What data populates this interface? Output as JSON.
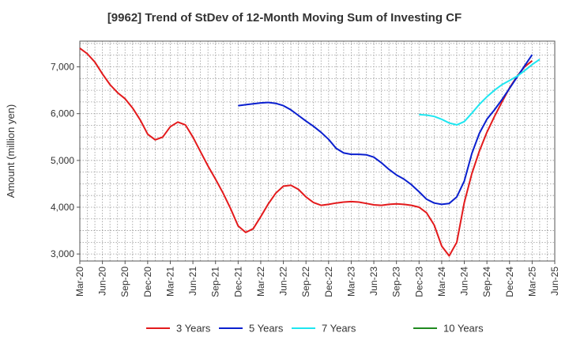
{
  "chart_data": {
    "type": "line",
    "title": "[9962]  Trend of StDev of 12-Month Moving Sum of Investing CF",
    "ylabel": "Amount (million yen)",
    "xlabel": "",
    "ylim": [
      2850,
      7550
    ],
    "yticks": [
      3000,
      4000,
      5000,
      6000,
      7000
    ],
    "ytick_labels": [
      "3,000",
      "4,000",
      "5,000",
      "6,000",
      "7,000"
    ],
    "xlim": [
      0,
      63
    ],
    "xticks": [
      0,
      3,
      6,
      9,
      12,
      15,
      18,
      21,
      24,
      27,
      30,
      33,
      36,
      39,
      42,
      45,
      48,
      51,
      54,
      57,
      60,
      63
    ],
    "xtick_labels": [
      "Mar-20",
      "Jun-20",
      "Sep-20",
      "Dec-20",
      "Mar-21",
      "Jun-21",
      "Sep-21",
      "Dec-21",
      "Mar-22",
      "Jun-22",
      "Sep-22",
      "Dec-22",
      "Mar-23",
      "Jun-23",
      "Sep-23",
      "Dec-23",
      "Mar-24",
      "Jun-24",
      "Sep-24",
      "Dec-24",
      "Mar-25",
      "Jun-25"
    ],
    "grid": true,
    "legend_position": "bottom",
    "series": [
      {
        "name": "3 Years",
        "color": "#e31a1c",
        "start": 0,
        "values": [
          7400,
          7280,
          7100,
          6850,
          6620,
          6450,
          6320,
          6120,
          5870,
          5560,
          5440,
          5500,
          5720,
          5820,
          5760,
          5500,
          5190,
          4880,
          4600,
          4300,
          3970,
          3600,
          3460,
          3540,
          3800,
          4070,
          4300,
          4450,
          4470,
          4380,
          4220,
          4100,
          4040,
          4060,
          4090,
          4110,
          4120,
          4110,
          4080,
          4050,
          4040,
          4060,
          4070,
          4060,
          4040,
          4000,
          3880,
          3620,
          3170,
          2960,
          3250,
          4100,
          4720,
          5200,
          5600,
          5940,
          6250,
          6550,
          6800,
          7000,
          7130
        ]
      },
      {
        "name": "5 Years",
        "color": "#0a1fcf",
        "start": 21,
        "values": [
          6170,
          6190,
          6210,
          6230,
          6240,
          6220,
          6170,
          6080,
          5960,
          5840,
          5730,
          5600,
          5450,
          5260,
          5160,
          5130,
          5130,
          5120,
          5070,
          4950,
          4810,
          4690,
          4600,
          4480,
          4330,
          4170,
          4090,
          4060,
          4080,
          4220,
          4560,
          5150,
          5580,
          5880,
          6080,
          6300,
          6540,
          6780,
          7020,
          7260
        ]
      },
      {
        "name": "7 Years",
        "color": "#1ee6f0",
        "start": 45,
        "values": [
          5980,
          5970,
          5940,
          5880,
          5800,
          5760,
          5830,
          6010,
          6200,
          6360,
          6500,
          6620,
          6710,
          6800,
          6920,
          7050,
          7160
        ]
      },
      {
        "name": "10 Years",
        "color": "#1f8a1f",
        "start": 0,
        "values": []
      }
    ]
  }
}
